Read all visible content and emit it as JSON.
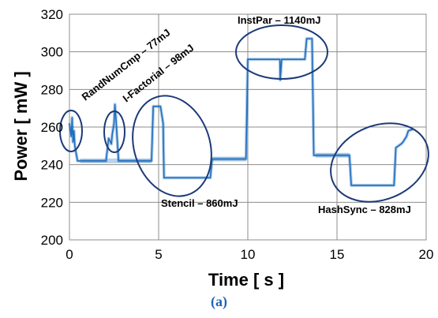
{
  "figure": {
    "caption": "(a)"
  },
  "chart_data": {
    "type": "line",
    "xlabel": "Time [ s ]",
    "ylabel": "Power [ mW ]",
    "xlim": [
      0,
      20
    ],
    "ylim": [
      200,
      320
    ],
    "xticks": [
      0,
      5,
      10,
      15,
      20
    ],
    "yticks": [
      200,
      220,
      240,
      260,
      280,
      300,
      320
    ],
    "grid": true,
    "colors": {
      "active": "#1f6fbf",
      "idle": "#b9d1ea",
      "ellipse": "#1c3a78",
      "caption": "#1f63b4"
    },
    "series": [
      {
        "role": "idle-baseline",
        "x": [
          0.6,
          4.6,
          8.0,
          9.9,
          13.8,
          15.7
        ],
        "y": [
          242,
          242,
          243,
          243,
          245,
          245
        ]
      },
      {
        "role": "active",
        "x": [
          0.0,
          0.1,
          0.15,
          0.2,
          0.25,
          0.3,
          0.45,
          2.05,
          2.15,
          2.2,
          2.35,
          2.4,
          2.5,
          2.55,
          2.6,
          2.75,
          4.6,
          4.7,
          5.1,
          5.25,
          5.3,
          7.9,
          8.0,
          9.9,
          10.0,
          11.8,
          11.82,
          11.9,
          13.2,
          13.3,
          13.6,
          13.7,
          15.7,
          15.8,
          18.2,
          18.3,
          18.6,
          18.7,
          18.9,
          19.0,
          19.3
        ],
        "y": [
          262,
          255,
          265,
          252,
          258,
          250,
          242,
          242,
          250,
          254,
          251,
          256,
          262,
          272,
          265,
          242,
          242,
          271,
          271,
          262,
          233,
          233,
          243,
          243,
          296,
          296,
          285,
          296,
          296,
          307,
          307,
          245,
          245,
          229,
          229,
          249,
          251,
          252,
          255,
          258,
          259
        ]
      }
    ],
    "annotations": [
      {
        "text": "RandNumCmp – 77mJ",
        "x": 0.15,
        "y": 259
      },
      {
        "text": "I-Factorial – 98mJ",
        "x": 2.5,
        "y": 258
      },
      {
        "text": "Stencil – 860mJ",
        "x": 6.3,
        "y": 252
      },
      {
        "text": "InstPar – 1140mJ",
        "x": 11.6,
        "y": 297
      },
      {
        "text": "HashSync – 828mJ",
        "x": 17.2,
        "y": 236
      }
    ]
  }
}
